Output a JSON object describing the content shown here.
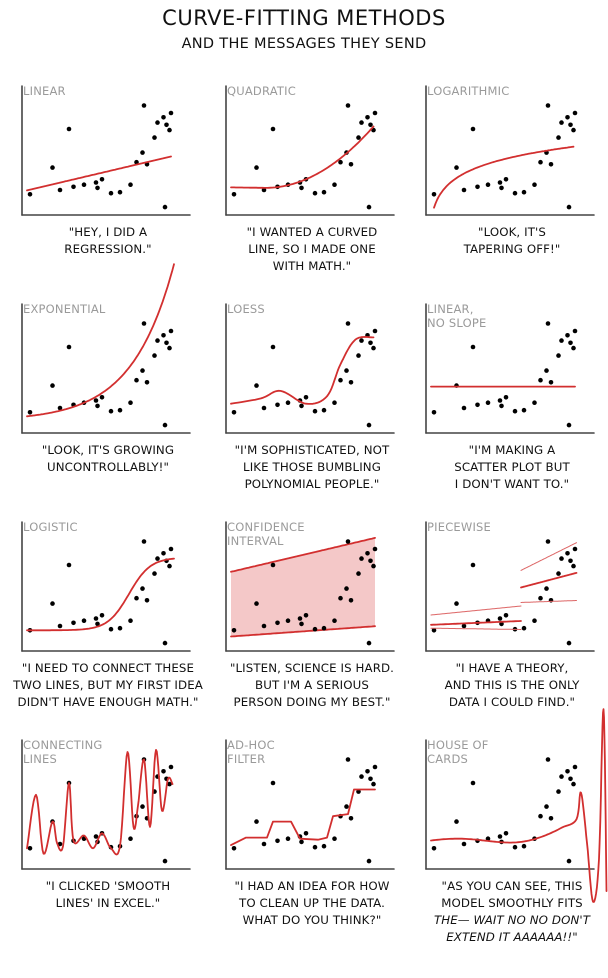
{
  "title": "CURVE-FITTING METHODS",
  "subtitle": "AND THE MESSAGES THEY SEND",
  "chart_data": [
    {
      "type": "scatter",
      "title": "LINEAR",
      "caption": [
        "\"HEY, I DID A",
        "REGRESSION.\""
      ],
      "fit": "linear"
    },
    {
      "type": "scatter",
      "title": "QUADRATIC",
      "caption": [
        "\"I WANTED A CURVED",
        "LINE, SO I MADE ONE",
        "WITH MATH.\""
      ],
      "fit": "quadratic"
    },
    {
      "type": "scatter",
      "title": "LOGARITHMIC",
      "caption": [
        "\"LOOK, IT'S",
        "TAPERING OFF!\""
      ],
      "fit": "logarithmic"
    },
    {
      "type": "scatter",
      "title": "EXPONENTIAL",
      "caption": [
        "\"LOOK, IT'S GROWING",
        "UNCONTROLLABLY!\""
      ],
      "fit": "exponential"
    },
    {
      "type": "scatter",
      "title": "LOESS",
      "caption": [
        "\"I'M SOPHISTICATED, NOT",
        "LIKE THOSE BUMBLING",
        "POLYNOMIAL PEOPLE.\""
      ],
      "fit": "loess"
    },
    {
      "type": "scatter",
      "title": "LINEAR, NO SLOPE",
      "caption": [
        "\"I'M MAKING A",
        "SCATTER PLOT BUT",
        "I DON'T WANT TO.\""
      ],
      "fit": "flat"
    },
    {
      "type": "scatter",
      "title": "LOGISTIC",
      "caption": [
        "\"I NEED TO CONNECT THESE",
        "TWO LINES, BUT MY FIRST IDEA",
        "DIDN'T HAVE ENOUGH MATH.\""
      ],
      "fit": "logistic"
    },
    {
      "type": "scatter",
      "title": "CONFIDENCE INTERVAL",
      "caption": [
        "\"LISTEN, SCIENCE IS HARD.",
        "BUT I'M A SERIOUS",
        "PERSON DOING MY BEST.\""
      ],
      "fit": "confidence"
    },
    {
      "type": "scatter",
      "title": "PIECEWISE",
      "caption": [
        "\"I HAVE A THEORY,",
        "AND THIS IS THE ONLY",
        "DATA I COULD FIND.\""
      ],
      "fit": "piecewise"
    },
    {
      "type": "scatter",
      "title": "CONNECTING LINES",
      "caption": [
        "\"I CLICKED 'SMOOTH",
        "LINES' IN EXCEL.\""
      ],
      "fit": "connecting"
    },
    {
      "type": "scatter",
      "title": "AD-HOC FILTER",
      "caption": [
        "\"I HAD AN IDEA FOR HOW",
        "TO CLEAN UP THE DATA.",
        "WHAT DO YOU THINK?\""
      ],
      "fit": "adhoc"
    },
    {
      "type": "scatter",
      "title": "HOUSE OF CARDS",
      "caption": [
        "\"AS YOU CAN SEE, THIS",
        "MODEL SMOOTHLY FITS",
        "THE— WAIT NO NO DON'T",
        "EXTEND IT AAAAAA!!\""
      ],
      "fit": "houseofcards"
    }
  ],
  "points": [
    {
      "x": 0.04,
      "y": 0.1
    },
    {
      "x": 0.19,
      "y": 0.35
    },
    {
      "x": 0.24,
      "y": 0.14
    },
    {
      "x": 0.3,
      "y": 0.71
    },
    {
      "x": 0.33,
      "y": 0.17
    },
    {
      "x": 0.4,
      "y": 0.19
    },
    {
      "x": 0.48,
      "y": 0.21
    },
    {
      "x": 0.49,
      "y": 0.16
    },
    {
      "x": 0.52,
      "y": 0.24
    },
    {
      "x": 0.58,
      "y": 0.11
    },
    {
      "x": 0.64,
      "y": 0.12
    },
    {
      "x": 0.71,
      "y": 0.19
    },
    {
      "x": 0.75,
      "y": 0.4
    },
    {
      "x": 0.8,
      "y": 0.93
    },
    {
      "x": 0.79,
      "y": 0.49
    },
    {
      "x": 0.82,
      "y": 0.38
    },
    {
      "x": 0.87,
      "y": 0.63
    },
    {
      "x": 0.89,
      "y": 0.77
    },
    {
      "x": 0.93,
      "y": 0.82
    },
    {
      "x": 0.95,
      "y": 0.75
    },
    {
      "x": 0.97,
      "y": 0.7
    },
    {
      "x": 0.98,
      "y": 0.86
    },
    {
      "x": 0.94,
      "y": -0.02
    }
  ],
  "colors": {
    "fit": "#d22f2f",
    "band": "#f4c8c8",
    "axis": "#444444",
    "point": "#000000",
    "label": "#9a9a9a"
  }
}
